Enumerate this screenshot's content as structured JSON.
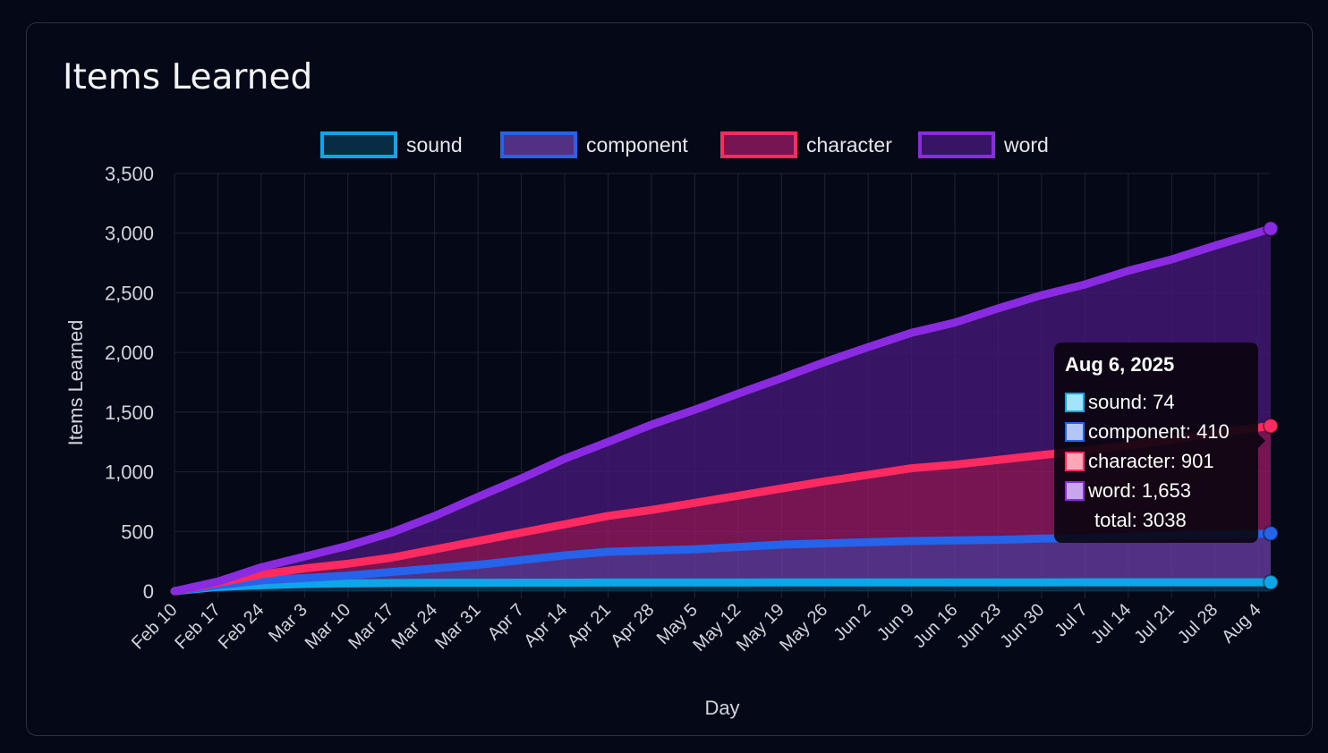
{
  "card": {
    "title": "Items Learned"
  },
  "chart_data": {
    "type": "area",
    "stacked": true,
    "title": "Items Learned",
    "xlabel": "Day",
    "ylabel": "Items Learned",
    "ylim": [
      0,
      3500
    ],
    "yticks": [
      0,
      500,
      1000,
      1500,
      2000,
      2500,
      3000,
      3500
    ],
    "ytick_labels": [
      "0",
      "500",
      "1,000",
      "1,500",
      "2,000",
      "2,500",
      "3,000",
      "3,500"
    ],
    "x_tick_labels": [
      "Feb 10",
      "Feb 17",
      "Feb 24",
      "Mar 3",
      "Mar 10",
      "Mar 17",
      "Mar 24",
      "Mar 31",
      "Apr 7",
      "Apr 14",
      "Apr 21",
      "Apr 28",
      "May 5",
      "May 12",
      "May 19",
      "May 26",
      "Jun 2",
      "Jun 9",
      "Jun 16",
      "Jun 23",
      "Jun 30",
      "Jul 7",
      "Jul 14",
      "Jul 21",
      "Jul 28",
      "Aug 4"
    ],
    "x_days": [
      0,
      7,
      14,
      21,
      28,
      35,
      42,
      49,
      56,
      63,
      70,
      77,
      84,
      91,
      98,
      105,
      112,
      119,
      126,
      133,
      140,
      147,
      154,
      161,
      168,
      175,
      177
    ],
    "grid": true,
    "legend_position": "top",
    "series": [
      {
        "name": "sound",
        "color": "#0ea5e9",
        "fill": "rgba(12,74,110,0.55)",
        "values": [
          0,
          35,
          50,
          60,
          65,
          68,
          70,
          70,
          71,
          71,
          72,
          72,
          72,
          72,
          73,
          73,
          73,
          73,
          73,
          73,
          73,
          74,
          74,
          74,
          74,
          74,
          74
        ]
      },
      {
        "name": "component",
        "color": "#2563eb",
        "fill": "rgba(108,62,170,0.75)",
        "values": [
          0,
          15,
          40,
          50,
          65,
          92,
          120,
          150,
          189,
          229,
          258,
          268,
          278,
          298,
          317,
          327,
          337,
          347,
          352,
          357,
          367,
          371,
          381,
          391,
          401,
          406,
          410
        ]
      },
      {
        "name": "character",
        "color": "#ff2a5f",
        "fill": "rgba(150,25,100,0.78)",
        "values": [
          0,
          20,
          50,
          80,
          100,
          120,
          160,
          200,
          230,
          260,
          300,
          340,
          390,
          430,
          470,
          520,
          565,
          610,
          635,
          670,
          700,
          735,
          765,
          805,
          845,
          890,
          901
        ]
      },
      {
        "name": "word",
        "color": "#8a2be2",
        "fill": "rgba(68,24,120,0.8)",
        "values": [
          0,
          10,
          60,
          100,
          150,
          210,
          280,
          370,
          455,
          550,
          620,
          715,
          780,
          855,
          925,
          1000,
          1070,
          1135,
          1190,
          1270,
          1340,
          1390,
          1465,
          1510,
          1575,
          1635,
          1653
        ]
      }
    ],
    "tooltip": {
      "title": "Aug 6, 2025",
      "rows": [
        "sound: 74",
        "component: 410",
        "character: 901",
        "word: 1,653"
      ],
      "swatches": [
        "#a5e3fb",
        "#b3c6f7",
        "#ffa5b8",
        "#caa5ef"
      ],
      "total": "total: 3038"
    }
  }
}
